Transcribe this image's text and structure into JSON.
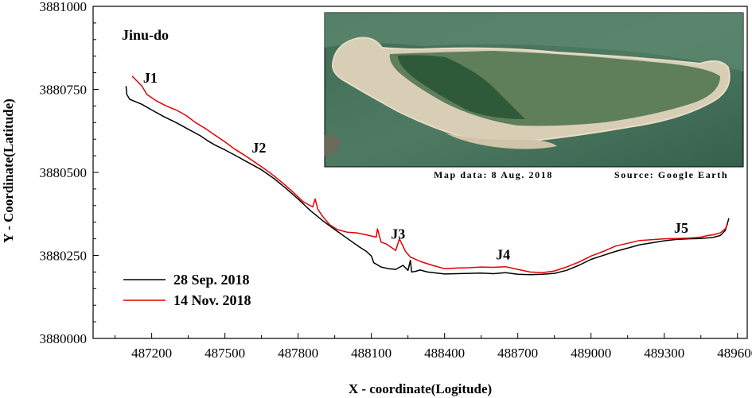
{
  "chart_data": {
    "type": "line",
    "title": "Jinu-do",
    "xlabel": "X - coordinate(Logitude)",
    "ylabel": "Y - Coordinate(Latitude)",
    "xlim": [
      486960,
      489640
    ],
    "ylim": [
      3880000,
      3881000
    ],
    "xticks": [
      487200,
      487500,
      487800,
      488100,
      488400,
      488700,
      489000,
      489300,
      489600
    ],
    "yticks": [
      3880000,
      3880250,
      3880500,
      3880750,
      3881000
    ],
    "xtick_labels": [
      "487200",
      "487500",
      "487800",
      "488100",
      "488400",
      "488700",
      "489000",
      "489300",
      "489600"
    ],
    "ytick_labels": [
      "3880000",
      "3880250",
      "3880500",
      "3880750",
      "3881000"
    ],
    "legend_position": "bottom-left",
    "annotations": [
      {
        "text": "J1",
        "x": 487165,
        "y": 3880770
      },
      {
        "text": "J2",
        "x": 487610,
        "y": 3880560
      },
      {
        "text": "J3",
        "x": 488180,
        "y": 3880300
      },
      {
        "text": "J4",
        "x": 488610,
        "y": 3880238
      },
      {
        "text": "J5",
        "x": 489340,
        "y": 3880318
      }
    ],
    "inset": {
      "caption_left": "Map data: 8 Aug. 2018",
      "caption_right": "Source: Google Earth"
    },
    "series": [
      {
        "name": "28 Sep. 2018",
        "color": "#000000",
        "x": [
          487095,
          487098,
          487110,
          487160,
          487200,
          487250,
          487300,
          487350,
          487400,
          487430,
          487460,
          487500,
          487550,
          487600,
          487650,
          487700,
          487750,
          487800,
          487850,
          487900,
          487950,
          488000,
          488050,
          488080,
          488100,
          488110,
          488140,
          488170,
          488200,
          488230,
          488250,
          488260,
          488265,
          488280,
          488300,
          488330,
          488400,
          488450,
          488500,
          488550,
          488600,
          488650,
          488700,
          488750,
          488800,
          488850,
          488900,
          488950,
          489000,
          489100,
          489200,
          489300,
          489350,
          489400,
          489450,
          489500,
          489530,
          489550,
          489565
        ],
        "y": [
          3880760,
          3880735,
          3880720,
          3880705,
          3880688,
          3880668,
          3880650,
          3880630,
          3880610,
          3880595,
          3880582,
          3880568,
          3880548,
          3880528,
          3880508,
          3880482,
          3880452,
          3880420,
          3880385,
          3880355,
          3880328,
          3880302,
          3880276,
          3880262,
          3880248,
          3880228,
          3880215,
          3880210,
          3880208,
          3880220,
          3880205,
          3880235,
          3880200,
          3880202,
          3880206,
          3880200,
          3880194,
          3880195,
          3880196,
          3880197,
          3880195,
          3880198,
          3880193,
          3880192,
          3880193,
          3880196,
          3880205,
          3880220,
          3880238,
          3880262,
          3880282,
          3880294,
          3880298,
          3880300,
          3880301,
          3880304,
          3880310,
          3880325,
          3880362
        ]
      },
      {
        "name": "14 Nov. 2018",
        "color": "#e00000",
        "x": [
          487120,
          487140,
          487160,
          487180,
          487220,
          487260,
          487300,
          487340,
          487380,
          487420,
          487460,
          487500,
          487540,
          487580,
          487620,
          487660,
          487700,
          487740,
          487780,
          487820,
          487860,
          487870,
          487880,
          487900,
          487930,
          487960,
          488000,
          488040,
          488080,
          488120,
          488125,
          488140,
          488160,
          488200,
          488215,
          488240,
          488260,
          488300,
          488350,
          488400,
          488450,
          488500,
          488550,
          488600,
          488650,
          488700,
          488750,
          488800,
          488850,
          488900,
          488950,
          489000,
          489050,
          489100,
          489200,
          489300,
          489400,
          489450,
          489480,
          489500,
          489530,
          489550,
          489560
        ],
        "y": [
          3880790,
          3880775,
          3880760,
          3880735,
          3880715,
          3880700,
          3880688,
          3880672,
          3880650,
          3880632,
          3880612,
          3880592,
          3880570,
          3880552,
          3880532,
          3880512,
          3880490,
          3880466,
          3880440,
          3880412,
          3880396,
          3880420,
          3880390,
          3880368,
          3880342,
          3880328,
          3880320,
          3880318,
          3880312,
          3880305,
          3880330,
          3880290,
          3880285,
          3880265,
          3880300,
          3880262,
          3880245,
          3880232,
          3880220,
          3880210,
          3880212,
          3880213,
          3880215,
          3880214,
          3880216,
          3880208,
          3880200,
          3880198,
          3880203,
          3880215,
          3880230,
          3880248,
          3880262,
          3880278,
          3880295,
          3880300,
          3880302,
          3880305,
          3880310,
          3880312,
          3880318,
          3880330,
          3880345
        ]
      }
    ]
  }
}
